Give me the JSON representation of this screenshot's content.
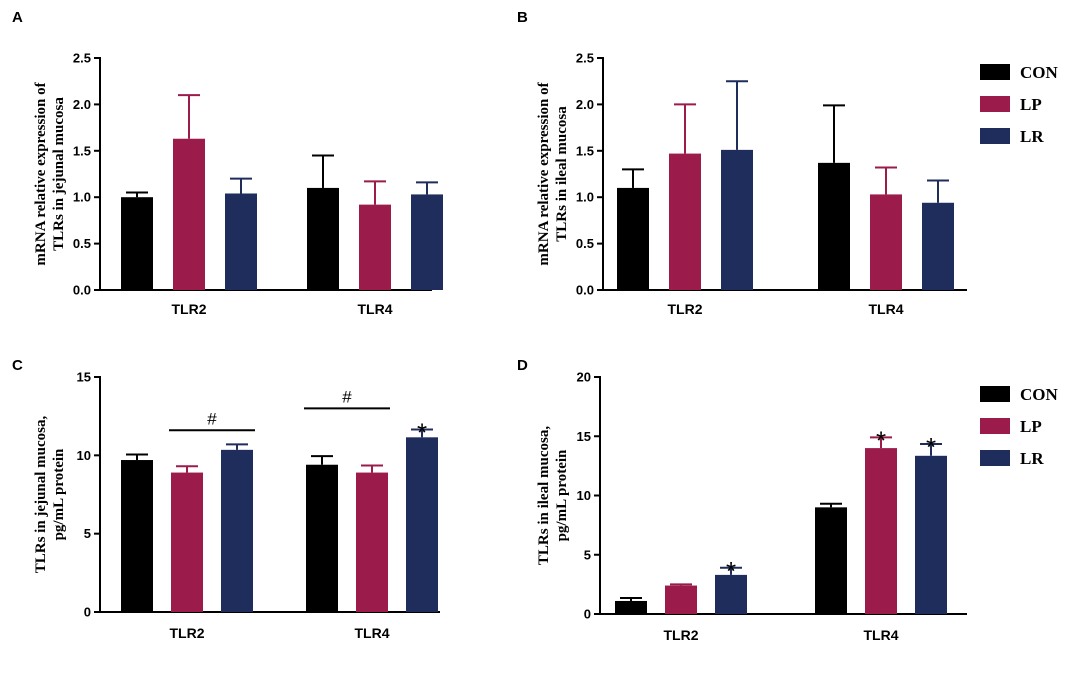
{
  "colors": {
    "CON": "#000000",
    "LP": "#9b1c4b",
    "LR": "#1f2d5c"
  },
  "chart_data": [
    {
      "type": "bar",
      "panel": "A",
      "ylabel": [
        "mRNA relative expression of",
        "TLRs in jejunal mucosa"
      ],
      "ylim": [
        0,
        2.5
      ],
      "yticks": [
        0,
        0.5,
        1.0,
        1.5,
        2.0,
        2.5
      ],
      "ytick_labels": [
        "0.0",
        "0.5",
        "1.0",
        "1.5",
        "2.0",
        "2.5"
      ],
      "categories": [
        "TLR2",
        "TLR4"
      ],
      "series": [
        {
          "name": "CON",
          "values": [
            1.0,
            1.1
          ],
          "errors": [
            0.05,
            0.35
          ]
        },
        {
          "name": "LP",
          "values": [
            1.63,
            0.92
          ],
          "errors": [
            0.47,
            0.25
          ]
        },
        {
          "name": "LR",
          "values": [
            1.04,
            1.03
          ],
          "errors": [
            0.16,
            0.13
          ]
        }
      ],
      "annotations": []
    },
    {
      "type": "bar",
      "panel": "B",
      "ylabel": [
        "mRNA relative expression of",
        "TLRs in ileal mucosa"
      ],
      "ylim": [
        0,
        2.5
      ],
      "yticks": [
        0,
        0.5,
        1.0,
        1.5,
        2.0,
        2.5
      ],
      "ytick_labels": [
        "0.0",
        "0.5",
        "1.0",
        "1.5",
        "2.0",
        "2.5"
      ],
      "categories": [
        "TLR2",
        "TLR4"
      ],
      "series": [
        {
          "name": "CON",
          "values": [
            1.1,
            1.37
          ],
          "errors": [
            0.2,
            0.62
          ]
        },
        {
          "name": "LP",
          "values": [
            1.47,
            1.03
          ],
          "errors": [
            0.53,
            0.29
          ]
        },
        {
          "name": "LR",
          "values": [
            1.51,
            0.94
          ],
          "errors": [
            0.74,
            0.24
          ]
        }
      ],
      "annotations": [],
      "legend": {
        "placement": "right",
        "entries": [
          "CON",
          "LP",
          "LR"
        ]
      }
    },
    {
      "type": "bar",
      "panel": "C",
      "ylabel": [
        "TLRs  in jejunal mucosa,",
        "pg/mL protein"
      ],
      "ylim": [
        0,
        15
      ],
      "yticks": [
        0,
        5,
        10,
        15
      ],
      "ytick_labels": [
        "0",
        "5",
        "10",
        "15"
      ],
      "categories": [
        "TLR2",
        "TLR4"
      ],
      "series": [
        {
          "name": "CON",
          "values": [
            9.7,
            9.4
          ],
          "errors": [
            0.35,
            0.55
          ]
        },
        {
          "name": "LP",
          "values": [
            8.9,
            8.9
          ],
          "errors": [
            0.4,
            0.45
          ]
        },
        {
          "name": "LR",
          "values": [
            10.35,
            11.15
          ],
          "errors": [
            0.35,
            0.5
          ]
        }
      ],
      "annotations": [
        {
          "kind": "bracket",
          "text": "#",
          "category": 0,
          "from": "LP",
          "to": "LR",
          "y": 11.6
        },
        {
          "kind": "bracket",
          "text": "#",
          "category": 1,
          "from": "CON",
          "to": "LP",
          "y": 13.0
        },
        {
          "kind": "star",
          "text": "*",
          "category": 1,
          "series": "LR"
        }
      ]
    },
    {
      "type": "bar",
      "panel": "D",
      "ylabel": [
        "TLRs  in ileal mucosa,",
        "pg/mL protein"
      ],
      "ylim": [
        0,
        20
      ],
      "yticks": [
        0,
        5,
        10,
        15,
        20
      ],
      "ytick_labels": [
        "0",
        "5",
        "10",
        "15",
        "20"
      ],
      "categories": [
        "TLR2",
        "TLR4"
      ],
      "series": [
        {
          "name": "CON",
          "values": [
            1.1,
            9.0
          ],
          "errors": [
            0.25,
            0.3
          ]
        },
        {
          "name": "LP",
          "values": [
            2.4,
            14.0
          ],
          "errors": [
            0.1,
            0.9
          ]
        },
        {
          "name": "LR",
          "values": [
            3.3,
            13.35
          ],
          "errors": [
            0.6,
            1.0
          ]
        }
      ],
      "annotations": [
        {
          "kind": "star",
          "text": "*",
          "category": 0,
          "series": "LR"
        },
        {
          "kind": "star",
          "text": "*",
          "category": 1,
          "series": "LP"
        },
        {
          "kind": "star",
          "text": "*",
          "category": 1,
          "series": "LR"
        }
      ],
      "legend": {
        "placement": "right",
        "entries": [
          "CON",
          "LP",
          "LR"
        ]
      }
    }
  ]
}
